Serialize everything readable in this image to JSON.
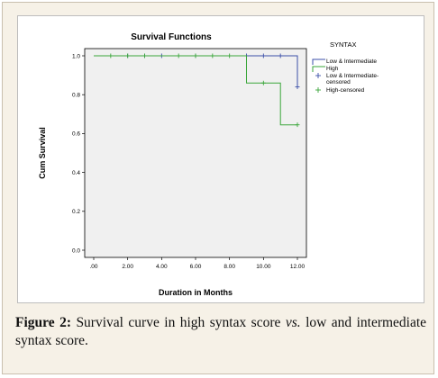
{
  "caption": {
    "label": "Figure 2:",
    "text_before": "Survival curve in high syntax score",
    "italic": "vs.",
    "text_after": "low and intermediate syntax score."
  },
  "chart_data": {
    "type": "line",
    "title": "Survival Functions",
    "xlabel": "Duration in Months",
    "ylabel": "Cum Survival",
    "xlim": [
      0,
      12
    ],
    "ylim": [
      0,
      1
    ],
    "x_ticks": [
      ".00",
      "2.00",
      "4.00",
      "6.00",
      "8.00",
      "10.00",
      "12.00"
    ],
    "y_ticks": [
      "0.0",
      "0.2",
      "0.4",
      "0.6",
      "0.8",
      "1.0"
    ],
    "grid": false,
    "legend": {
      "title": "SYNTAX",
      "placement": "right",
      "entries": [
        "Low & Intermediate",
        "High",
        "Low & Intermediate-censored",
        "High-censored"
      ]
    },
    "series": [
      {
        "name": "Low & Intermediate",
        "color": "#3b4fa8",
        "steps": [
          [
            0,
            1.0
          ],
          [
            12,
            1.0
          ],
          [
            12,
            0.84
          ]
        ],
        "censored": [
          [
            2,
            1.0
          ],
          [
            3,
            1.0
          ],
          [
            4,
            1.0
          ],
          [
            6,
            1.0
          ],
          [
            9,
            1.0
          ],
          [
            10,
            1.0
          ],
          [
            11,
            1.0
          ],
          [
            12,
            0.84
          ]
        ]
      },
      {
        "name": "High",
        "color": "#3aa63a",
        "steps": [
          [
            0,
            1.0
          ],
          [
            9,
            1.0
          ],
          [
            9,
            0.86
          ],
          [
            11,
            0.86
          ],
          [
            11,
            0.645
          ],
          [
            12,
            0.645
          ]
        ],
        "censored": [
          [
            1,
            1.0
          ],
          [
            2,
            1.0
          ],
          [
            3,
            1.0
          ],
          [
            5,
            1.0
          ],
          [
            6,
            1.0
          ],
          [
            7,
            1.0
          ],
          [
            8,
            1.0
          ],
          [
            10,
            0.86
          ],
          [
            12,
            0.645
          ]
        ]
      }
    ]
  }
}
